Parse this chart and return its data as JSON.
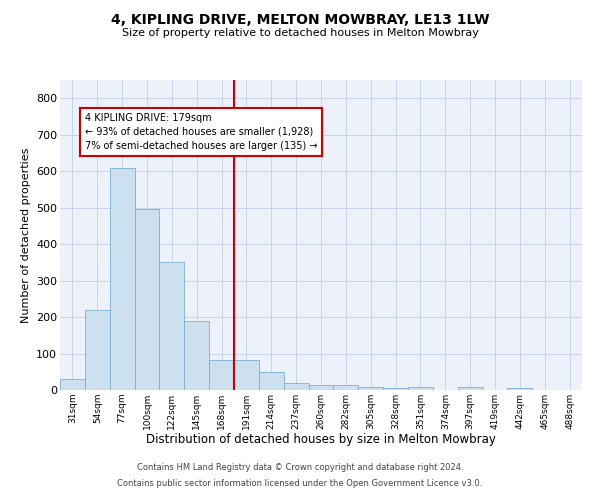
{
  "title": "4, KIPLING DRIVE, MELTON MOWBRAY, LE13 1LW",
  "subtitle": "Size of property relative to detached houses in Melton Mowbray",
  "xlabel": "Distribution of detached houses by size in Melton Mowbray",
  "ylabel": "Number of detached properties",
  "bar_color": "#cce0f0",
  "bar_edgecolor": "#7ab0d4",
  "categories": [
    "31sqm",
    "54sqm",
    "77sqm",
    "100sqm",
    "122sqm",
    "145sqm",
    "168sqm",
    "191sqm",
    "214sqm",
    "237sqm",
    "260sqm",
    "282sqm",
    "305sqm",
    "328sqm",
    "351sqm",
    "374sqm",
    "397sqm",
    "419sqm",
    "442sqm",
    "465sqm",
    "488sqm"
  ],
  "values": [
    30,
    218,
    608,
    495,
    352,
    188,
    83,
    83,
    50,
    18,
    13,
    13,
    8,
    5,
    8,
    0,
    8,
    0,
    5,
    0,
    0
  ],
  "vline_color": "#cc0000",
  "annotation_text": "4 KIPLING DRIVE: 179sqm\n← 93% of detached houses are smaller (1,928)\n7% of semi-detached houses are larger (135) →",
  "ylim": [
    0,
    850
  ],
  "yticks": [
    0,
    100,
    200,
    300,
    400,
    500,
    600,
    700,
    800
  ],
  "grid_color": "#c8d4e8",
  "bg_color": "#edf1fa",
  "footer1": "Contains HM Land Registry data © Crown copyright and database right 2024.",
  "footer2": "Contains public sector information licensed under the Open Government Licence v3.0."
}
